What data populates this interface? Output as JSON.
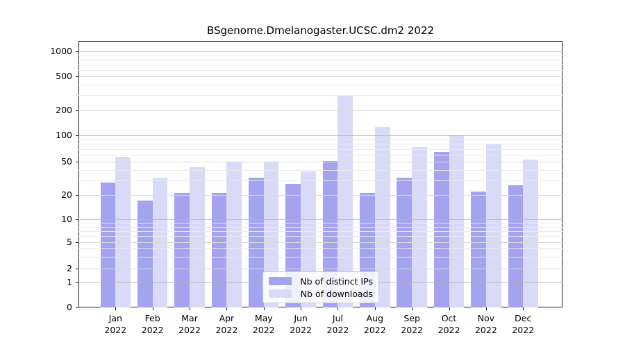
{
  "title": "BSgenome.Dmelanogaster.UCSC.dm2 2022",
  "legend": {
    "items": [
      {
        "label": "Nb of distinct IPs",
        "color": "#a3a3ef"
      },
      {
        "label": "Nb of downloads",
        "color": "#d9d9f8"
      }
    ]
  },
  "chart_data": {
    "type": "bar",
    "title": "BSgenome.Dmelanogaster.UCSC.dm2 2022",
    "months": [
      "Jan",
      "Feb",
      "Mar",
      "Apr",
      "May",
      "Jun",
      "Jul",
      "Aug",
      "Sep",
      "Oct",
      "Nov",
      "Dec"
    ],
    "year": "2022",
    "series": [
      {
        "name": "Nb of distinct IPs",
        "color": "#a3a3ef",
        "values": [
          28,
          17,
          21,
          21,
          32,
          27,
          51,
          21,
          32,
          64,
          22,
          26
        ]
      },
      {
        "name": "Nb of downloads",
        "color": "#d9d9f8",
        "values": [
          57,
          32,
          43,
          50,
          49,
          38,
          300,
          125,
          73,
          100,
          80,
          53
        ]
      }
    ],
    "yticks": [
      0,
      1,
      2,
      5,
      10,
      20,
      50,
      100,
      200,
      500,
      1000
    ],
    "yscale": "log-like",
    "ylim": [
      0,
      1400
    ],
    "grid": true,
    "legend_position": "lower center"
  },
  "colors": {
    "major_grid": "#b3b3b3",
    "mid_grid": "#dadada",
    "minor_grid": "#ebebeb",
    "spine": "#1a1a1a"
  }
}
